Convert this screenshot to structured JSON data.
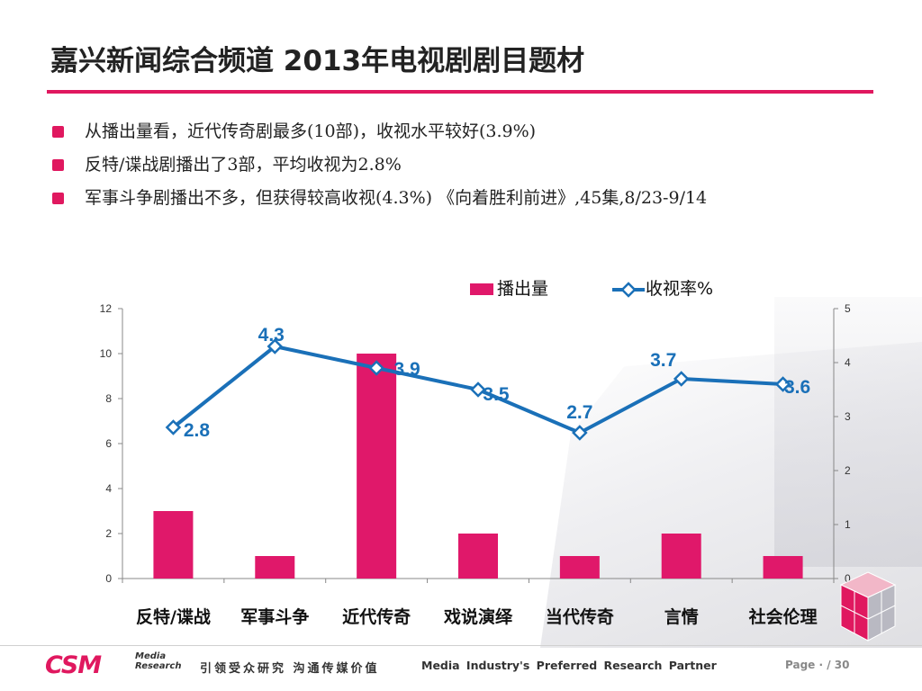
{
  "slide": {
    "title": "嘉兴新闻综合频道 2013年电视剧剧目题材",
    "bullets": [
      {
        "text": "从播出量看，近代传奇剧最多(10部)，收视水平较好(3.9%)"
      },
      {
        "text": "反特/谍战剧播出了3部，平均收视为2.8%"
      },
      {
        "text": "军事斗争剧播出不多，但获得较高收视(4.3%) 《向着胜利前进》,45集,8/23-9/14"
      }
    ]
  },
  "colors": {
    "accent": "#e0185f",
    "bar": "#e0186a",
    "line": "#1a70b8",
    "label": "#1a70b8"
  },
  "chart_data": {
    "type": "bar",
    "categories": [
      "反特/谍战",
      "军事斗争",
      "近代传奇",
      "戏说演绎",
      "当代传奇",
      "言情",
      "社会伦理"
    ],
    "series": [
      {
        "name": "播出量",
        "type": "bar",
        "axis": "left",
        "values": [
          3,
          1,
          10,
          2,
          1,
          2,
          1
        ]
      },
      {
        "name": "收视率%",
        "type": "line",
        "axis": "right",
        "values": [
          2.8,
          4.3,
          3.9,
          3.5,
          2.7,
          3.7,
          3.6
        ],
        "labels": [
          "2.8",
          "4.3",
          "3.9",
          "3.5",
          "2.7",
          "3.7",
          "3.6"
        ]
      }
    ],
    "y_left": {
      "min": 0,
      "max": 12,
      "ticks": [
        "0",
        "2",
        "4",
        "6",
        "8",
        "10",
        "12"
      ]
    },
    "y_right": {
      "min": 0,
      "max": 5,
      "ticks": [
        "0",
        "1",
        "2",
        "3",
        "4",
        "5"
      ]
    },
    "legend_position": "top-right",
    "grid": false
  },
  "footer": {
    "logo_text": "CSM",
    "logo_sub_1": "Media",
    "logo_sub_2": "Research",
    "slogan_cn": "引领受众研究 沟通传媒价值",
    "slogan_en": "Media Industry's Preferred Research Partner",
    "page": "Page · / 30"
  }
}
